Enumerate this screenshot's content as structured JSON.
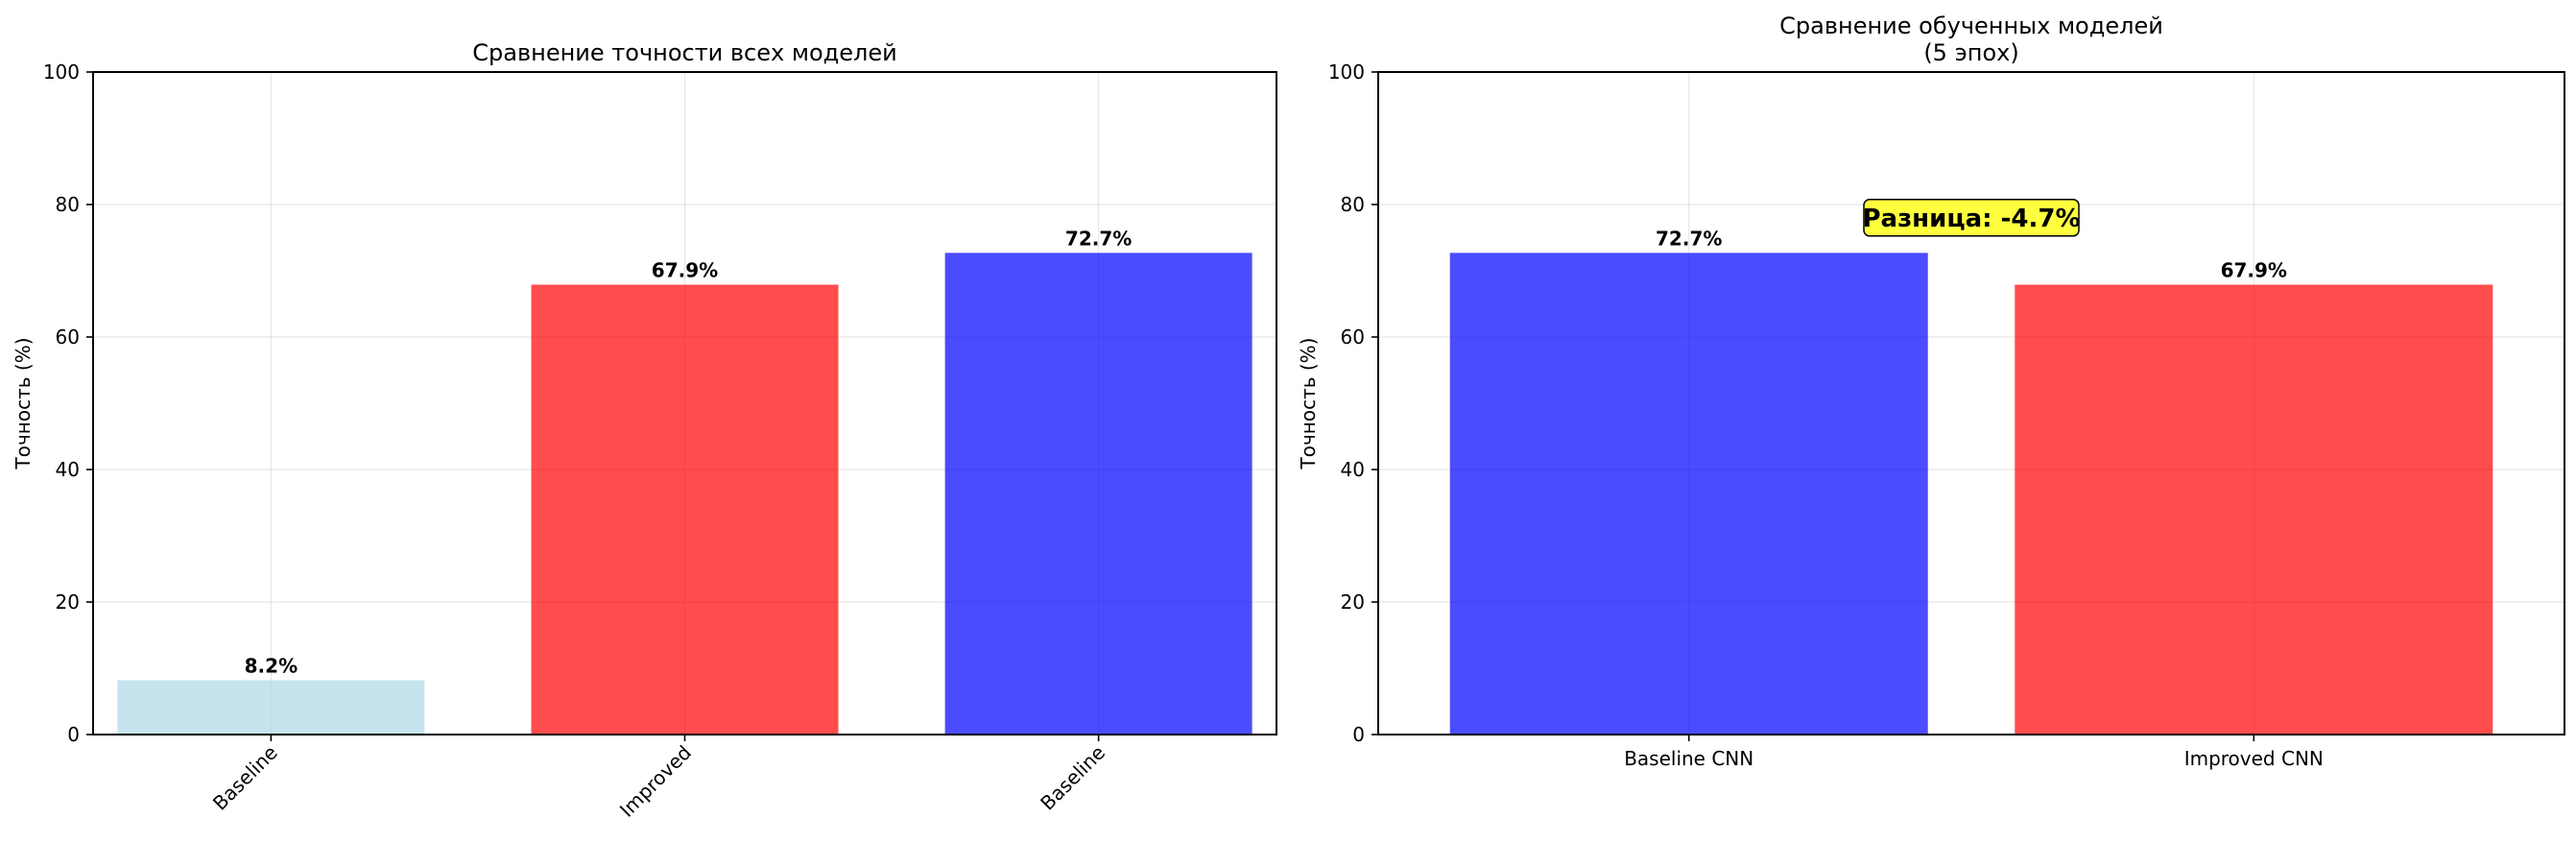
{
  "chart_data": [
    {
      "type": "bar",
      "title": "Сравнение точности всех моделей",
      "ylabel": "Точность (%)",
      "xlabel": "",
      "ylim": [
        0,
        100
      ],
      "yticks": [
        0,
        20,
        40,
        60,
        80,
        100
      ],
      "grid": true,
      "categories": [
        "Baseline",
        "Improved",
        "Baseline"
      ],
      "values": [
        8.2,
        67.9,
        72.7
      ],
      "value_labels": [
        "8.2%",
        "67.9%",
        "72.7%"
      ],
      "colors": [
        "#add8e6",
        "#ff0000",
        "#0000ff"
      ],
      "bar_alpha": 0.7,
      "tick_rotation": 45
    },
    {
      "type": "bar",
      "title": "Сравнение обученных моделей\n(5 эпох)",
      "ylabel": "Точность (%)",
      "xlabel": "",
      "ylim": [
        0,
        100
      ],
      "yticks": [
        0,
        20,
        40,
        60,
        80,
        100
      ],
      "grid": true,
      "categories": [
        "Baseline CNN",
        "Improved CNN"
      ],
      "values": [
        72.7,
        67.9
      ],
      "value_labels": [
        "72.7%",
        "67.9%"
      ],
      "colors": [
        "#0000ff",
        "#ff0000"
      ],
      "bar_alpha": 0.7,
      "tick_rotation": 0,
      "annotation": {
        "text": "Разница: -4.7%",
        "box_color": "#ffff00",
        "y": 78
      }
    }
  ]
}
